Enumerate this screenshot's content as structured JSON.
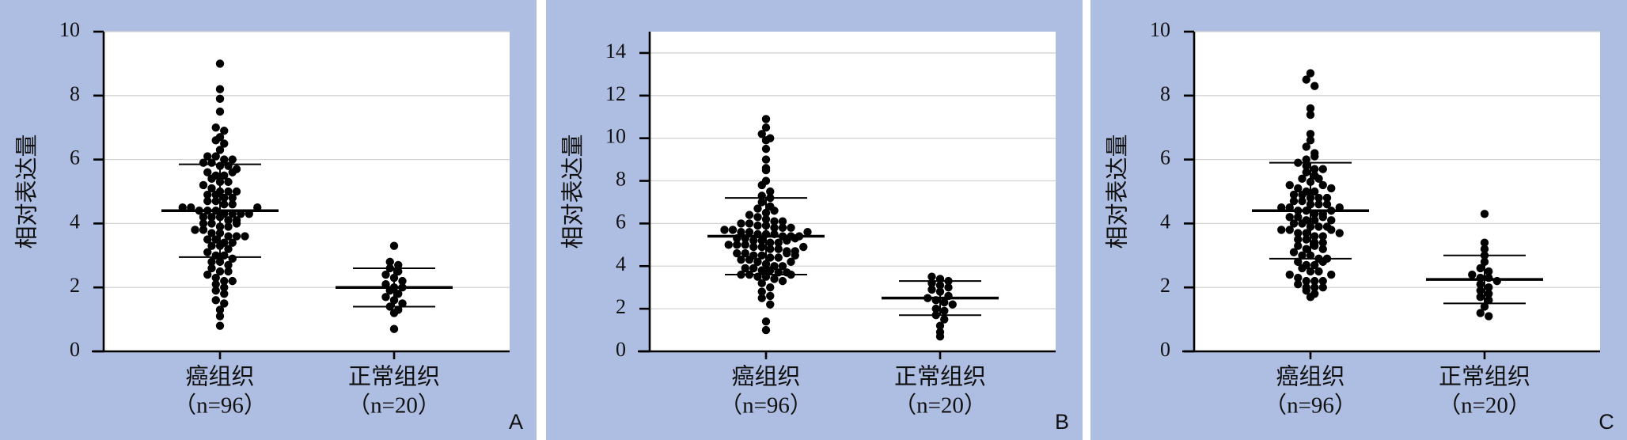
{
  "chart_data": [
    {
      "type": "dotplot",
      "panel_label": "A",
      "ylabel": "相对表达量",
      "categories": [
        "癌组织",
        "正常组织"
      ],
      "category_notes": [
        "（n=96）",
        "（n=20）"
      ],
      "ylim": [
        0,
        10
      ],
      "yticks": [
        0,
        2,
        4,
        6,
        8,
        10
      ],
      "grid": true,
      "color": "#000000",
      "groups": [
        {
          "mean": 4.4,
          "sd": 1.45,
          "values": [
            9.0,
            8.2,
            7.9,
            7.5,
            7.0,
            6.9,
            6.7,
            6.6,
            6.5,
            6.3,
            6.1,
            6.1,
            6.0,
            6.0,
            5.9,
            5.9,
            5.8,
            5.8,
            5.7,
            5.6,
            5.5,
            5.5,
            5.4,
            5.3,
            5.3,
            5.2,
            5.1,
            5.0,
            5.0,
            4.9,
            4.9,
            4.8,
            4.8,
            4.7,
            4.7,
            4.6,
            4.6,
            4.5,
            4.5,
            4.4,
            4.4,
            4.4,
            4.3,
            4.3,
            4.3,
            4.3,
            4.2,
            4.2,
            4.2,
            4.1,
            4.1,
            4.0,
            4.0,
            3.9,
            3.9,
            3.8,
            3.8,
            3.7,
            3.7,
            3.6,
            3.6,
            3.5,
            3.5,
            3.4,
            3.4,
            3.3,
            3.3,
            3.2,
            3.1,
            3.0,
            3.0,
            2.9,
            2.8,
            2.8,
            2.7,
            2.6,
            2.5,
            2.5,
            2.4,
            2.3,
            2.2,
            2.2,
            2.1,
            2.0,
            1.9,
            1.8,
            1.6,
            1.5,
            1.3,
            1.1,
            0.8,
            5.6,
            5.0,
            4.5,
            3.6,
            4.0
          ]
        },
        {
          "mean": 2.0,
          "sd": 0.6,
          "values": [
            3.3,
            2.8,
            2.7,
            2.6,
            2.5,
            2.4,
            2.3,
            2.2,
            2.1,
            2.0,
            2.0,
            1.9,
            1.8,
            1.7,
            1.6,
            1.5,
            1.4,
            1.3,
            1.2,
            0.7
          ]
        }
      ]
    },
    {
      "type": "dotplot",
      "panel_label": "B",
      "ylabel": "相对表达量",
      "categories": [
        "癌组织",
        "正常组织"
      ],
      "category_notes": [
        "（n=96）",
        "（n=20）"
      ],
      "ylim": [
        0,
        15
      ],
      "yticks": [
        0,
        2,
        4,
        6,
        8,
        10,
        12,
        14
      ],
      "grid": true,
      "color": "#000000",
      "groups": [
        {
          "mean": 5.4,
          "sd": 1.8,
          "values": [
            10.9,
            10.5,
            10.2,
            10.0,
            9.9,
            9.5,
            9.0,
            8.6,
            8.5,
            8.0,
            7.8,
            7.5,
            7.3,
            7.2,
            7.0,
            6.8,
            6.7,
            6.5,
            6.4,
            6.3,
            6.2,
            6.1,
            6.0,
            6.0,
            5.9,
            5.9,
            5.8,
            5.8,
            5.7,
            5.7,
            5.6,
            5.6,
            5.5,
            5.5,
            5.5,
            5.4,
            5.4,
            5.4,
            5.3,
            5.3,
            5.2,
            5.2,
            5.1,
            5.1,
            5.0,
            5.0,
            5.0,
            4.9,
            4.9,
            4.8,
            4.8,
            4.7,
            4.7,
            4.6,
            4.6,
            4.5,
            4.5,
            4.4,
            4.4,
            4.3,
            4.3,
            4.2,
            4.1,
            4.0,
            4.0,
            3.9,
            3.9,
            3.8,
            3.8,
            3.7,
            3.7,
            3.6,
            3.6,
            3.5,
            3.5,
            3.4,
            3.3,
            3.2,
            3.0,
            2.8,
            2.6,
            2.5,
            2.2,
            1.4,
            1.0,
            6.6,
            5.8,
            5.2,
            4.6,
            4.2,
            3.6,
            5.3,
            4.9,
            5.6,
            6.1,
            4.5
          ]
        },
        {
          "mean": 2.5,
          "sd": 0.8,
          "values": [
            3.5,
            3.4,
            3.3,
            3.2,
            3.1,
            3.0,
            2.9,
            2.8,
            2.6,
            2.5,
            2.4,
            2.3,
            2.2,
            2.0,
            1.9,
            1.7,
            1.5,
            1.2,
            0.9,
            0.7
          ]
        }
      ]
    },
    {
      "type": "dotplot",
      "panel_label": "C",
      "ylabel": "相对表达量",
      "categories": [
        "癌组织",
        "正常组织"
      ],
      "category_notes": [
        "（n=96）",
        "（n=20）"
      ],
      "ylim": [
        0,
        10
      ],
      "yticks": [
        0,
        2,
        4,
        6,
        8,
        10
      ],
      "grid": true,
      "color": "#000000",
      "groups": [
        {
          "mean": 4.4,
          "sd": 1.5,
          "values": [
            8.7,
            8.5,
            8.3,
            7.6,
            7.4,
            6.8,
            6.6,
            6.4,
            6.2,
            6.0,
            5.9,
            5.8,
            5.7,
            5.6,
            5.5,
            5.4,
            5.3,
            5.2,
            5.1,
            5.0,
            5.0,
            4.9,
            4.9,
            4.8,
            4.8,
            4.7,
            4.7,
            4.6,
            4.6,
            4.5,
            4.5,
            4.4,
            4.4,
            4.3,
            4.3,
            4.2,
            4.2,
            4.1,
            4.1,
            4.0,
            4.0,
            3.9,
            3.9,
            3.8,
            3.8,
            3.7,
            3.7,
            3.6,
            3.6,
            3.5,
            3.5,
            3.4,
            3.3,
            3.2,
            3.1,
            3.0,
            3.0,
            2.9,
            2.8,
            2.7,
            2.6,
            2.5,
            2.4,
            2.3,
            2.2,
            2.2,
            2.1,
            2.0,
            1.9,
            1.8,
            1.7,
            5.2,
            4.6,
            4.4,
            3.9,
            3.4,
            2.7,
            2.2,
            5.4,
            4.8,
            4.2,
            3.8,
            3.3,
            2.9,
            2.5,
            2.0,
            6.1,
            5.7,
            5.1,
            4.5,
            4.1,
            3.7,
            3.2,
            2.8,
            2.4,
            2.0
          ]
        },
        {
          "mean": 2.25,
          "sd": 0.75,
          "values": [
            4.3,
            3.4,
            3.2,
            3.0,
            2.8,
            2.6,
            2.5,
            2.4,
            2.3,
            2.3,
            2.2,
            2.1,
            2.0,
            1.9,
            1.8,
            1.7,
            1.6,
            1.4,
            1.2,
            1.1
          ]
        }
      ]
    }
  ]
}
